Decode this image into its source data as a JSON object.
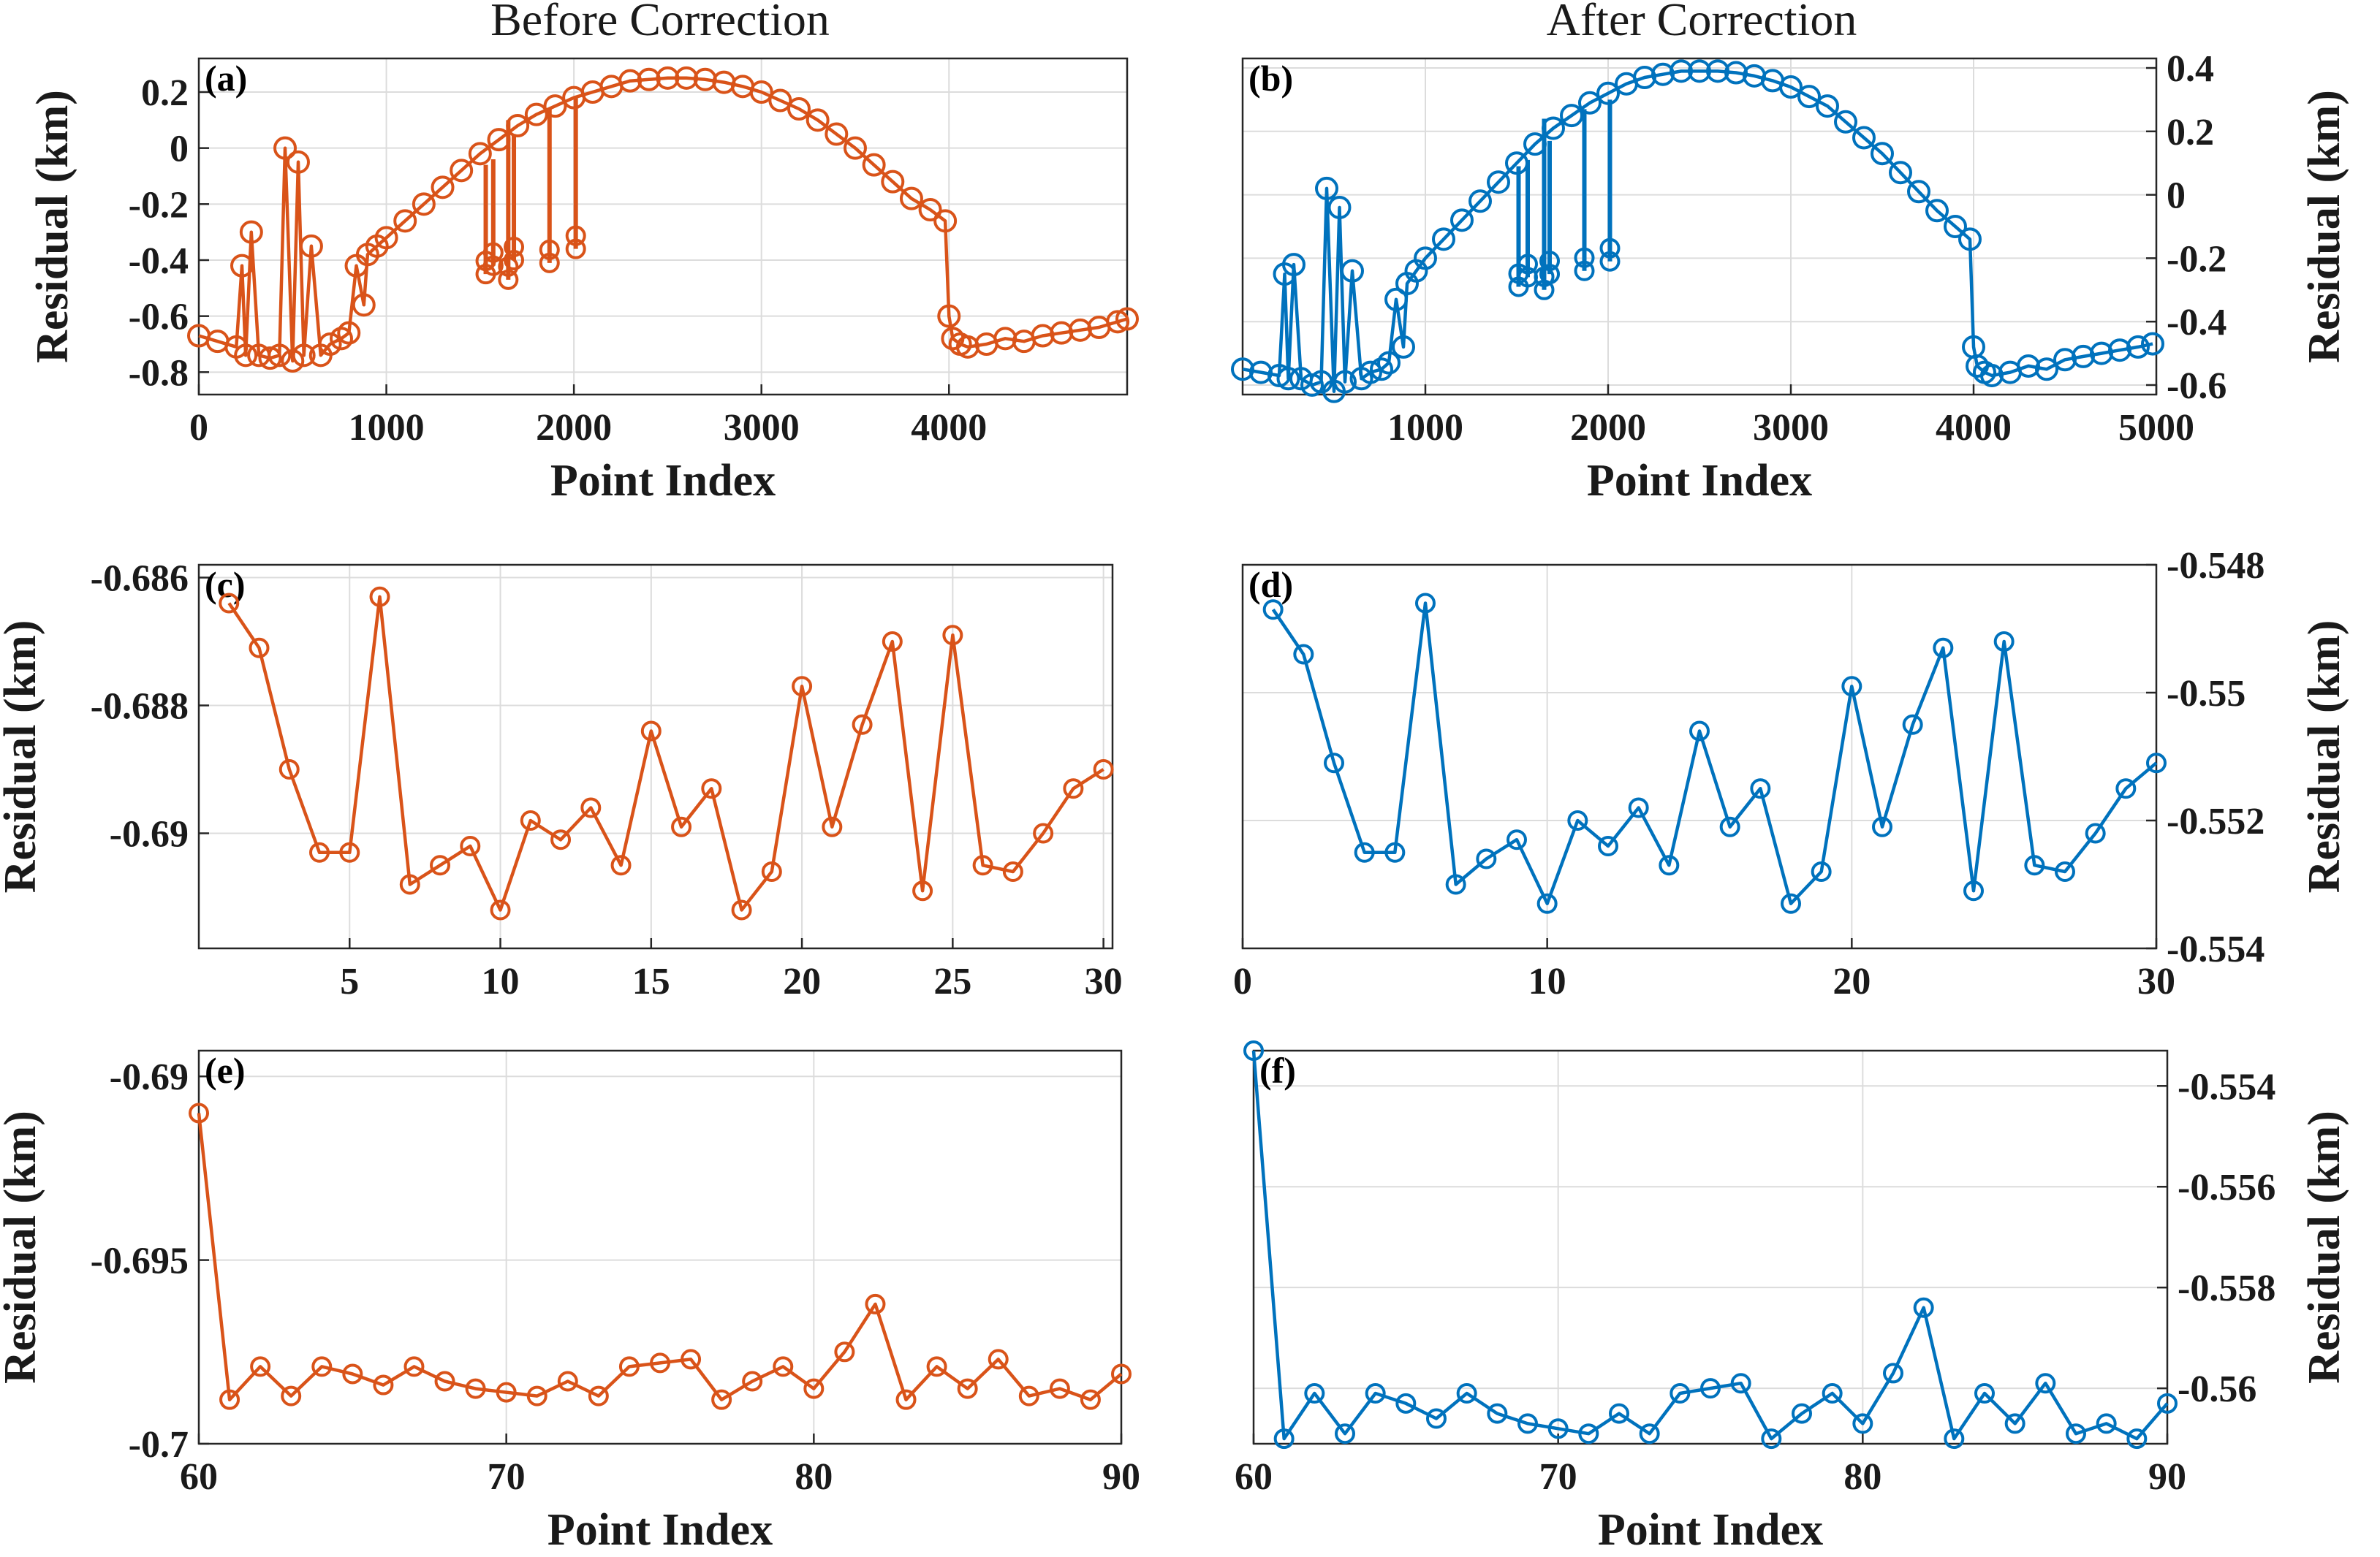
{
  "figure": {
    "column_titles": [
      "Before Correction",
      "After Correction"
    ],
    "colors": {
      "before": "#D95319",
      "after": "#0072BD",
      "axis": "#262626",
      "grid": "#DCDCDC"
    }
  },
  "chart_data": [
    {
      "id": "a",
      "label": "(a)",
      "type": "line",
      "marker": "circle",
      "title": "Before Correction",
      "xlabel": "Point Index",
      "ylabel": "Residual (km)",
      "yaxis_side": "left",
      "xlim": [
        0,
        4950
      ],
      "ylim": [
        -0.88,
        0.32
      ],
      "xticks": [
        0,
        1000,
        2000,
        3000,
        4000
      ],
      "xtick_labels": [
        "0",
        "1000",
        "2000",
        "3000",
        "4000"
      ],
      "yticks": [
        -0.8,
        -0.6,
        -0.4,
        -0.2,
        0,
        0.2
      ],
      "ytick_labels": [
        "-0.8",
        "-0.6",
        "-0.4",
        "-0.2",
        "0",
        "0.2"
      ],
      "series": [
        {
          "name": "Before Correction",
          "color": "#D95319",
          "x": [
            0,
            100,
            200,
            230,
            250,
            280,
            320,
            380,
            430,
            460,
            500,
            530,
            560,
            600,
            650,
            700,
            760,
            800,
            840,
            880,
            900,
            950,
            1000,
            1100,
            1200,
            1300,
            1400,
            1500,
            1600,
            1700,
            1800,
            1900,
            2000,
            2100,
            2200,
            2300,
            2400,
            2500,
            2600,
            2700,
            2800,
            2900,
            3000,
            3100,
            3200,
            3300,
            3400,
            3500,
            3600,
            3700,
            3800,
            3900,
            3980,
            4000,
            4020,
            4060,
            4100,
            4200,
            4300,
            4400,
            4500,
            4600,
            4700,
            4800,
            4900,
            4950
          ],
          "y": [
            -0.67,
            -0.69,
            -0.71,
            -0.42,
            -0.74,
            -0.3,
            -0.74,
            -0.75,
            -0.74,
            0,
            -0.76,
            -0.05,
            -0.74,
            -0.35,
            -0.74,
            -0.7,
            -0.68,
            -0.66,
            -0.42,
            -0.56,
            -0.38,
            -0.35,
            -0.32,
            -0.26,
            -0.2,
            -0.14,
            -0.08,
            -0.02,
            0.03,
            0.08,
            0.12,
            0.15,
            0.18,
            0.2,
            0.22,
            0.24,
            0.245,
            0.25,
            0.25,
            0.245,
            0.235,
            0.22,
            0.2,
            0.17,
            0.14,
            0.1,
            0.05,
            0,
            -0.06,
            -0.12,
            -0.18,
            -0.22,
            -0.26,
            -0.6,
            -0.68,
            -0.7,
            -0.71,
            -0.7,
            -0.68,
            -0.69,
            -0.67,
            -0.66,
            -0.65,
            -0.64,
            -0.62,
            -0.61
          ]
        }
      ],
      "spikes": [
        {
          "x": 1530,
          "bottom": -0.45,
          "top": -0.06
        },
        {
          "x": 1570,
          "bottom": -0.42,
          "top": -0.04
        },
        {
          "x": 1650,
          "bottom": -0.47,
          "top": 0.1
        },
        {
          "x": 1680,
          "bottom": -0.4,
          "top": 0.05
        },
        {
          "x": 1870,
          "bottom": -0.41,
          "top": 0.14
        },
        {
          "x": 2010,
          "bottom": -0.36,
          "top": 0.18
        }
      ]
    },
    {
      "id": "b",
      "label": "(b)",
      "type": "line",
      "marker": "circle",
      "title": "After Correction",
      "xlabel": "Point Index",
      "ylabel": "Residual (km)",
      "yaxis_side": "right",
      "xlim": [
        0,
        5000
      ],
      "ylim": [
        -0.63,
        0.43
      ],
      "xticks": [
        1000,
        2000,
        3000,
        4000,
        5000
      ],
      "xtick_labels": [
        "1000",
        "2000",
        "3000",
        "4000",
        "5000"
      ],
      "yticks": [
        -0.6,
        -0.4,
        -0.2,
        0,
        0.2,
        0.4
      ],
      "ytick_labels": [
        "-0.6",
        "-0.4",
        "-0.2",
        "0",
        "0.2",
        "0.4"
      ],
      "series": [
        {
          "name": "After Correction",
          "color": "#0072BD",
          "x": [
            0,
            100,
            200,
            230,
            250,
            280,
            320,
            380,
            430,
            460,
            500,
            530,
            560,
            600,
            650,
            700,
            760,
            800,
            840,
            880,
            900,
            950,
            1000,
            1100,
            1200,
            1300,
            1400,
            1500,
            1600,
            1700,
            1800,
            1900,
            2000,
            2100,
            2200,
            2300,
            2400,
            2500,
            2600,
            2700,
            2800,
            2900,
            3000,
            3100,
            3200,
            3300,
            3400,
            3500,
            3600,
            3700,
            3800,
            3900,
            3980,
            4000,
            4020,
            4060,
            4100,
            4200,
            4300,
            4400,
            4500,
            4600,
            4700,
            4800,
            4900,
            4980
          ],
          "y": [
            -0.55,
            -0.56,
            -0.57,
            -0.25,
            -0.58,
            -0.22,
            -0.58,
            -0.6,
            -0.59,
            0.02,
            -0.62,
            -0.04,
            -0.59,
            -0.24,
            -0.58,
            -0.56,
            -0.55,
            -0.53,
            -0.33,
            -0.48,
            -0.28,
            -0.24,
            -0.2,
            -0.14,
            -0.08,
            -0.02,
            0.04,
            0.1,
            0.16,
            0.21,
            0.25,
            0.29,
            0.32,
            0.35,
            0.37,
            0.38,
            0.39,
            0.39,
            0.39,
            0.385,
            0.375,
            0.36,
            0.34,
            0.31,
            0.28,
            0.23,
            0.18,
            0.13,
            0.07,
            0.01,
            -0.05,
            -0.1,
            -0.14,
            -0.48,
            -0.54,
            -0.56,
            -0.57,
            -0.56,
            -0.54,
            -0.55,
            -0.52,
            -0.51,
            -0.5,
            -0.49,
            -0.48,
            -0.47
          ]
        }
      ],
      "spikes": [
        {
          "x": 1510,
          "bottom": -0.29,
          "top": 0.09
        },
        {
          "x": 1560,
          "bottom": -0.26,
          "top": 0.11
        },
        {
          "x": 1650,
          "bottom": -0.3,
          "top": 0.24
        },
        {
          "x": 1680,
          "bottom": -0.25,
          "top": 0.17
        },
        {
          "x": 1870,
          "bottom": -0.24,
          "top": 0.27
        },
        {
          "x": 2010,
          "bottom": -0.21,
          "top": 0.3
        }
      ]
    },
    {
      "id": "c",
      "label": "(c)",
      "type": "line",
      "marker": "circle",
      "xlabel": "",
      "ylabel": "Residual (km)",
      "yaxis_side": "left",
      "xlim": [
        0,
        30.3
      ],
      "ylim": [
        -0.6918,
        -0.6858
      ],
      "xticks": [
        5,
        10,
        15,
        20,
        25,
        30
      ],
      "xtick_labels": [
        "5",
        "10",
        "15",
        "20",
        "25",
        "30"
      ],
      "yticks": [
        -0.69,
        -0.688,
        -0.686
      ],
      "ytick_labels": [
        "-0.69",
        "-0.688",
        "-0.686"
      ],
      "series": [
        {
          "name": "Before Correction",
          "color": "#D95319",
          "x": [
            1,
            2,
            3,
            4,
            5,
            6,
            7,
            8,
            9,
            10,
            11,
            12,
            13,
            14,
            15,
            16,
            17,
            18,
            19,
            20,
            21,
            22,
            23,
            24,
            25,
            26,
            27,
            28,
            29,
            30
          ],
          "y": [
            -0.6864,
            -0.6871,
            -0.689,
            -0.6903,
            -0.6903,
            -0.6863,
            -0.6908,
            -0.6905,
            -0.6902,
            -0.6912,
            -0.6898,
            -0.6901,
            -0.6896,
            -0.6905,
            -0.6884,
            -0.6899,
            -0.6893,
            -0.6912,
            -0.6906,
            -0.6877,
            -0.6899,
            -0.6883,
            -0.687,
            -0.6909,
            -0.6869,
            -0.6905,
            -0.6906,
            -0.69,
            -0.6893,
            -0.689
          ]
        }
      ]
    },
    {
      "id": "d",
      "label": "(d)",
      "type": "line",
      "marker": "circle",
      "xlabel": "",
      "ylabel": "Residual (km)",
      "yaxis_side": "right",
      "xlim": [
        0,
        30
      ],
      "ylim": [
        -0.554,
        -0.548
      ],
      "xticks": [
        0,
        10,
        20,
        30
      ],
      "xtick_labels": [
        "0",
        "10",
        "20",
        "30"
      ],
      "yticks": [
        -0.554,
        -0.552,
        -0.55,
        -0.548
      ],
      "ytick_labels": [
        "-0.554",
        "-0.552",
        "-0.55",
        "-0.548"
      ],
      "series": [
        {
          "name": "After Correction",
          "color": "#0072BD",
          "x": [
            1,
            2,
            3,
            4,
            5,
            6,
            7,
            8,
            9,
            10,
            11,
            12,
            13,
            14,
            15,
            16,
            17,
            18,
            19,
            20,
            21,
            22,
            23,
            24,
            25,
            26,
            27,
            28,
            29,
            30
          ],
          "y": [
            -0.5487,
            -0.5494,
            -0.5511,
            -0.5525,
            -0.5525,
            -0.5486,
            -0.553,
            -0.5526,
            -0.5523,
            -0.5533,
            -0.552,
            -0.5524,
            -0.5518,
            -0.5527,
            -0.5506,
            -0.5521,
            -0.5515,
            -0.5533,
            -0.5528,
            -0.5499,
            -0.5521,
            -0.5505,
            -0.5493,
            -0.5531,
            -0.5492,
            -0.5527,
            -0.5528,
            -0.5522,
            -0.5515,
            -0.5511
          ]
        }
      ]
    },
    {
      "id": "e",
      "label": "(e)",
      "type": "line",
      "marker": "circle",
      "xlabel": "Point Index",
      "ylabel": "Residual (km)",
      "yaxis_side": "left",
      "xlim": [
        60,
        90
      ],
      "ylim": [
        -0.7,
        -0.6893
      ],
      "xticks": [
        60,
        70,
        80,
        90
      ],
      "xtick_labels": [
        "60",
        "70",
        "80",
        "90"
      ],
      "yticks": [
        -0.7,
        -0.695,
        -0.69
      ],
      "ytick_labels": [
        "-0.7",
        "-0.695",
        "-0.69"
      ],
      "series": [
        {
          "name": "Before Correction",
          "color": "#D95319",
          "x": [
            60,
            61,
            62,
            63,
            64,
            65,
            66,
            67,
            68,
            69,
            70,
            71,
            72,
            73,
            74,
            75,
            76,
            77,
            78,
            79,
            80,
            81,
            82,
            83,
            84,
            85,
            86,
            87,
            88,
            89,
            90
          ],
          "y": [
            -0.691,
            -0.6988,
            -0.6979,
            -0.6987,
            -0.6979,
            -0.6981,
            -0.6984,
            -0.6979,
            -0.6983,
            -0.6985,
            -0.6986,
            -0.6987,
            -0.6983,
            -0.6987,
            -0.6979,
            -0.6978,
            -0.6977,
            -0.6988,
            -0.6983,
            -0.6979,
            -0.6985,
            -0.6975,
            -0.6962,
            -0.6988,
            -0.6979,
            -0.6985,
            -0.6977,
            -0.6987,
            -0.6985,
            -0.6988,
            -0.6981
          ]
        }
      ]
    },
    {
      "id": "f",
      "label": "(f)",
      "type": "line",
      "marker": "circle",
      "xlabel": "Point Index",
      "ylabel": "Residual (km)",
      "yaxis_side": "right",
      "xlim": [
        60,
        90
      ],
      "ylim": [
        -0.5611,
        -0.5533
      ],
      "xticks": [
        60,
        70,
        80,
        90
      ],
      "xtick_labels": [
        "60",
        "70",
        "80",
        "90"
      ],
      "yticks": [
        -0.56,
        -0.558,
        -0.556,
        -0.554
      ],
      "ytick_labels": [
        "-0.56",
        "-0.558",
        "-0.556",
        "-0.554"
      ],
      "series": [
        {
          "name": "After Correction",
          "color": "#0072BD",
          "x": [
            60,
            61,
            62,
            63,
            64,
            65,
            66,
            67,
            68,
            69,
            70,
            71,
            72,
            73,
            74,
            75,
            76,
            77,
            78,
            79,
            80,
            81,
            82,
            83,
            84,
            85,
            86,
            87,
            88,
            89,
            90
          ],
          "y": [
            -0.5533,
            -0.561,
            -0.5601,
            -0.5609,
            -0.5601,
            -0.5603,
            -0.5606,
            -0.5601,
            -0.5605,
            -0.5607,
            -0.5608,
            -0.5609,
            -0.5605,
            -0.5609,
            -0.5601,
            -0.56,
            -0.5599,
            -0.561,
            -0.5605,
            -0.5601,
            -0.5607,
            -0.5597,
            -0.5584,
            -0.561,
            -0.5601,
            -0.5607,
            -0.5599,
            -0.5609,
            -0.5607,
            -0.561,
            -0.5603
          ]
        }
      ]
    }
  ]
}
